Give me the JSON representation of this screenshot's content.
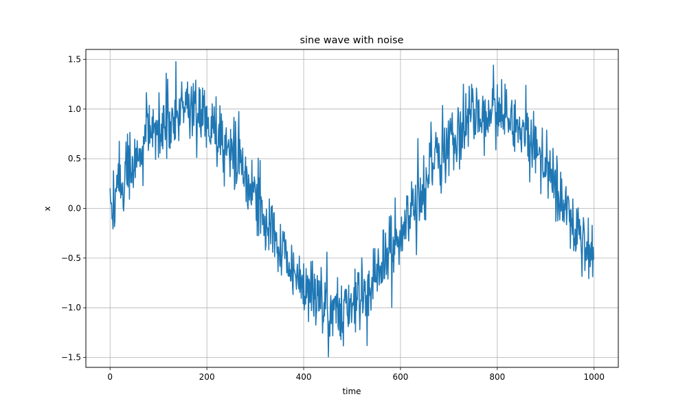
{
  "chart_data": {
    "type": "line",
    "title": "sine wave with noise",
    "xlabel": "time",
    "ylabel": "x",
    "xlim": [
      -50,
      1050
    ],
    "ylim": [
      -1.6,
      1.6
    ],
    "xticks": [
      0,
      200,
      400,
      600,
      800,
      1000
    ],
    "xtick_labels": [
      "0",
      "200",
      "400",
      "600",
      "800",
      "1000"
    ],
    "yticks": [
      -1.5,
      -1.0,
      -0.5,
      0.0,
      0.5,
      1.0,
      1.5
    ],
    "ytick_labels": [
      "−1.5",
      "−1.0",
      "−0.5",
      "0.0",
      "0.5",
      "1.0",
      "1.5"
    ],
    "grid": true,
    "line_color": "#1f77b4",
    "series": [
      {
        "x_start": 0,
        "x_end": 999,
        "underlying": "sin(2*pi*x/628)",
        "noise_std": 0.18,
        "points_count": 1000
      }
    ]
  }
}
